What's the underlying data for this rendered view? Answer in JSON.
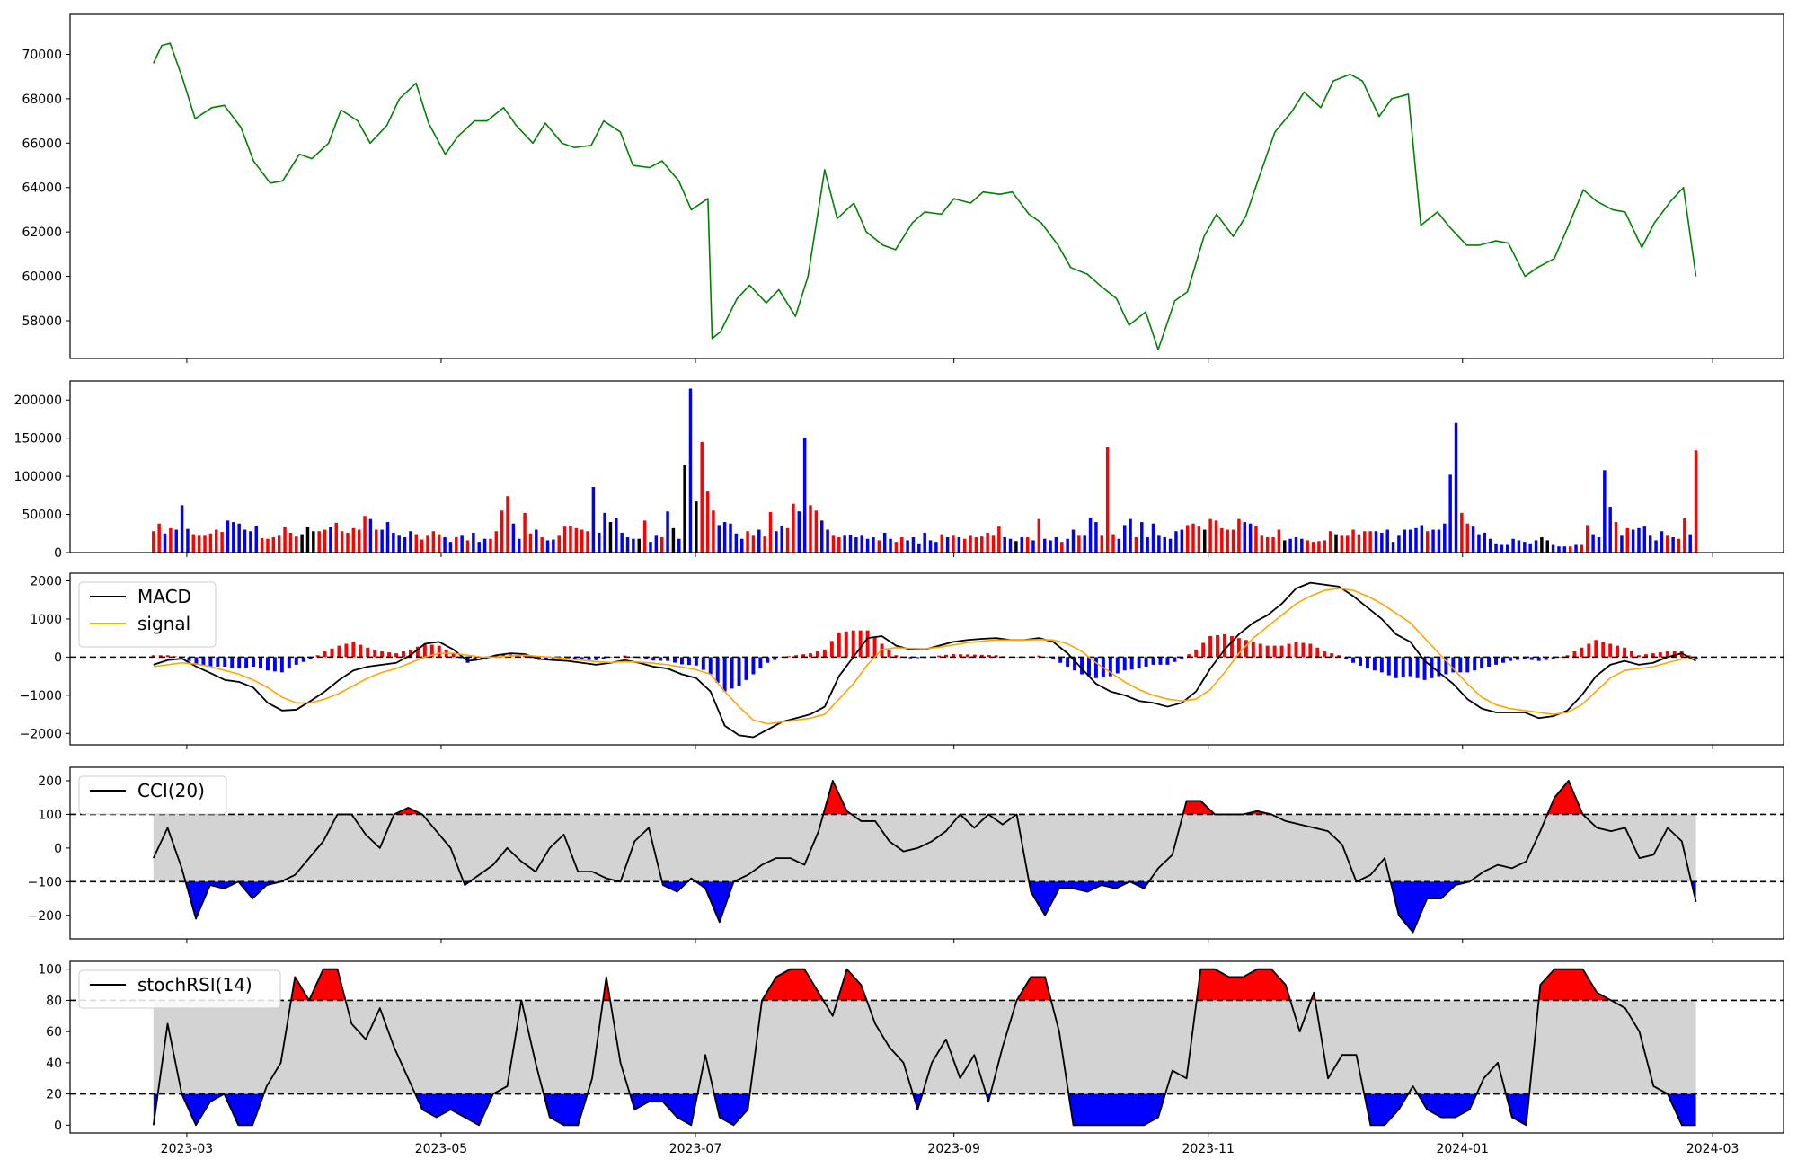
{
  "figure": {
    "background": "#ffffff"
  },
  "colors": {
    "price": "#008000",
    "up": "#ff0000",
    "down": "#0000ff",
    "flat": "#000000",
    "macd": "#000000",
    "signal": "#ffa500",
    "band": "#d3d3d3",
    "axis": "#000000"
  },
  "chart_data": [
    {
      "id": "price",
      "type": "line",
      "x_dates": [
        "2023-02-21",
        "2023-02-23",
        "2023-02-25",
        "2023-02-28",
        "2023-03-03",
        "2023-03-07",
        "2023-03-10",
        "2023-03-14",
        "2023-03-17",
        "2023-03-21",
        "2023-03-24",
        "2023-03-28",
        "2023-03-31",
        "2023-04-04",
        "2023-04-07",
        "2023-04-11",
        "2023-04-14",
        "2023-04-18",
        "2023-04-21",
        "2023-04-25",
        "2023-04-28",
        "2023-05-02",
        "2023-05-05",
        "2023-05-09",
        "2023-05-12",
        "2023-05-16",
        "2023-05-19",
        "2023-05-23",
        "2023-05-26",
        "2023-05-30",
        "2023-06-02",
        "2023-06-06",
        "2023-06-09",
        "2023-06-13",
        "2023-06-16",
        "2023-06-20",
        "2023-06-23",
        "2023-06-27",
        "2023-06-30",
        "2023-07-04",
        "2023-07-05",
        "2023-07-07",
        "2023-07-11",
        "2023-07-14",
        "2023-07-18",
        "2023-07-21",
        "2023-07-25",
        "2023-07-28",
        "2023-08-01",
        "2023-08-04",
        "2023-08-08",
        "2023-08-11",
        "2023-08-15",
        "2023-08-18",
        "2023-08-22",
        "2023-08-25",
        "2023-08-29",
        "2023-09-01",
        "2023-09-05",
        "2023-09-08",
        "2023-09-12",
        "2023-09-15",
        "2023-09-19",
        "2023-09-22",
        "2023-09-26",
        "2023-09-29",
        "2023-10-03",
        "2023-10-06",
        "2023-10-10",
        "2023-10-13",
        "2023-10-17",
        "2023-10-20",
        "2023-10-24",
        "2023-10-27",
        "2023-10-31",
        "2023-11-03",
        "2023-11-07",
        "2023-11-10",
        "2023-11-14",
        "2023-11-17",
        "2023-11-21",
        "2023-11-24",
        "2023-11-28",
        "2023-12-01",
        "2023-12-05",
        "2023-12-08",
        "2023-12-12",
        "2023-12-15",
        "2023-12-19",
        "2023-12-22",
        "2023-12-26",
        "2023-12-29",
        "2024-01-02",
        "2024-01-05",
        "2024-01-09",
        "2024-01-12",
        "2024-01-16",
        "2024-01-19",
        "2024-01-23",
        "2024-01-26",
        "2024-01-30",
        "2024-02-02",
        "2024-02-06",
        "2024-02-09",
        "2024-02-13",
        "2024-02-16",
        "2024-02-20",
        "2024-02-23",
        "2024-02-26"
      ],
      "y": [
        69600,
        70400,
        70500,
        68900,
        67100,
        67600,
        67700,
        66700,
        65200,
        64200,
        64300,
        65500,
        65300,
        66000,
        67500,
        67000,
        66000,
        66800,
        68000,
        68700,
        66900,
        65500,
        66300,
        67000,
        67000,
        67600,
        66800,
        66000,
        66900,
        66000,
        65800,
        65900,
        67000,
        66500,
        65000,
        64900,
        65200,
        64300,
        63000,
        63500,
        57200,
        57500,
        59000,
        59600,
        58800,
        59400,
        58200,
        60000,
        64800,
        62600,
        63300,
        62000,
        61400,
        61200,
        62400,
        62900,
        62800,
        63500,
        63300,
        63800,
        63700,
        63800,
        62800,
        62400,
        61400,
        60400,
        60100,
        59600,
        59000,
        57800,
        58400,
        56700,
        58900,
        59300,
        61800,
        62800,
        61800,
        62700,
        64900,
        66500,
        67400,
        68300,
        67600,
        68800,
        69100,
        68800,
        67200,
        68000,
        68200,
        62300,
        62900,
        62200,
        61400,
        61400,
        61600,
        61500,
        60000,
        60400,
        60800,
        62100,
        63900,
        63400,
        63000,
        62900,
        61300,
        62400,
        63400,
        64000,
        60000
      ],
      "yticks": [
        "58000",
        "60000",
        "62000",
        "64000",
        "66000",
        "68000",
        "70000"
      ],
      "ylim": [
        56300,
        71800
      ]
    },
    {
      "id": "volume",
      "type": "bar",
      "yticks": [
        "0",
        "50000",
        "100000",
        "150000",
        "200000"
      ],
      "ylim": [
        0,
        225000
      ],
      "values": [
        28000,
        38000,
        25000,
        32000,
        30000,
        62000,
        31000,
        24000,
        22000,
        22000,
        25000,
        30000,
        27000,
        42000,
        40000,
        38000,
        30000,
        28000,
        35000,
        19000,
        18000,
        20000,
        22000,
        33000,
        26000,
        21000,
        24000,
        33000,
        28000,
        28000,
        30000,
        33000,
        39000,
        28000,
        26000,
        32000,
        30000,
        48000,
        44000,
        30000,
        30000,
        40000,
        26000,
        22000,
        20000,
        28000,
        24000,
        17000,
        22000,
        28000,
        24000,
        20000,
        14000,
        20000,
        22000,
        16000,
        26000,
        14000,
        18000,
        18000,
        28000,
        55000,
        74000,
        38000,
        18000,
        52000,
        25000,
        30000,
        20000,
        16000,
        17000,
        22000,
        34000,
        35000,
        32000,
        30000,
        28000,
        86000,
        26000,
        52000,
        40000,
        45000,
        26000,
        20000,
        18000,
        18000,
        42000,
        14000,
        22000,
        20000,
        54000,
        32000,
        18000,
        115000,
        215000,
        67000,
        145000,
        80000,
        55000,
        36000,
        40000,
        38000,
        25000,
        18000,
        28000,
        22000,
        30000,
        21000,
        53000,
        28000,
        35000,
        32000,
        64000,
        54000,
        150000,
        62000,
        55000,
        42000,
        30000,
        22000,
        20000,
        22000,
        23000,
        20000,
        22000,
        18000,
        20000,
        16000,
        26000,
        18000,
        14000,
        20000,
        16000,
        20000,
        12000,
        26000,
        16000,
        14000,
        24000,
        20000,
        22000,
        20000,
        18000,
        22000,
        20000,
        21000,
        26000,
        22000,
        34000,
        20000,
        18000,
        15000,
        20000,
        20000,
        16000,
        44000,
        18000,
        16000,
        20000,
        14000,
        18000,
        30000,
        22000,
        22000,
        46000,
        40000,
        22000,
        138000,
        24000,
        18000,
        36000,
        44000,
        20000,
        40000,
        20000,
        38000,
        22000,
        20000,
        18000,
        28000,
        30000,
        36000,
        38000,
        34000,
        30000,
        44000,
        42000,
        32000,
        30000,
        30000,
        44000,
        40000,
        38000,
        35000,
        22000,
        20000,
        20000,
        30000,
        16000,
        18000,
        20000,
        18000,
        16000,
        14000,
        15000,
        16000,
        28000,
        24000,
        22000,
        22000,
        30000,
        24000,
        28000,
        28000,
        28000,
        26000,
        30000,
        14000,
        22000,
        30000,
        30000,
        32000,
        36000,
        28000,
        30000,
        30000,
        38000,
        102000,
        170000,
        52000,
        38000,
        34000,
        24000,
        26000,
        18000,
        12000,
        10000,
        10000,
        18000,
        16000,
        14000,
        12000,
        16000,
        20000,
        16000,
        10000,
        8000,
        8000,
        8000,
        10000,
        10000,
        36000,
        24000,
        20000,
        108000,
        60000,
        40000,
        22000,
        32000,
        30000,
        32000,
        34000,
        22000,
        16000,
        28000,
        22000,
        20000,
        18000,
        45000,
        24000,
        134000
      ],
      "colors_code": "rrbrbbbrrrrrrbbbbbbrrrrrrrkkkrrbrrrrrrbrbbbbbbrrrrrbbrbrbbbrrrrbbrrbrbbrrrrrrbbbkbbbbkrbbrbkbkbkrrrbbbbbrrbrrbbrrbbrrbbrrbbbbbbrbbrrbbbbbbrbrbrrrrrrrbbkbrbrbbbrbbrbbbrrrbbbrbbbbbbbbrrrkrrrrrrbbrrrrrkbbbrrrrrkrrrrrrbbbbbbbbbrbbbbbrrbbbbbbbbbbbbkkbbbrbrrbbbbrbrbbbbbbrb"
    },
    {
      "id": "macd",
      "type": "line",
      "yticks": [
        "−2000",
        "−1000",
        "0",
        "1000",
        "2000"
      ],
      "ylim": [
        -2300,
        2200
      ],
      "series": [
        {
          "name": "MACD",
          "color": "#000000",
          "values": [
            -200,
            -80,
            -40,
            -250,
            -420,
            -600,
            -650,
            -800,
            -1200,
            -1400,
            -1380,
            -1150,
            -900,
            -600,
            -350,
            -250,
            -200,
            -150,
            50,
            350,
            400,
            200,
            -100,
            -50,
            50,
            100,
            80,
            -50,
            -80,
            -100,
            -150,
            -200,
            -150,
            -80,
            -150,
            -250,
            -300,
            -450,
            -550,
            -900,
            -1800,
            -2050,
            -2100,
            -1900,
            -1700,
            -1600,
            -1500,
            -1300,
            -500,
            0,
            500,
            550,
            300,
            200,
            200,
            300,
            400,
            450,
            480,
            500,
            450,
            450,
            500,
            400,
            100,
            -300,
            -700,
            -900,
            -1000,
            -1150,
            -1200,
            -1300,
            -1200,
            -900,
            -300,
            200,
            600,
            900,
            1100,
            1400,
            1800,
            1950,
            1900,
            1850,
            1600,
            1300,
            1000,
            600,
            400,
            -100,
            -400,
            -700,
            -1100,
            -1350,
            -1450,
            -1450,
            -1450,
            -1600,
            -1550,
            -1400,
            -1000,
            -500,
            -200,
            -100,
            -200,
            -150,
            0,
            100,
            -100
          ]
        },
        {
          "name": "signal",
          "color": "#ffa500",
          "values": [
            -250,
            -200,
            -150,
            -180,
            -250,
            -350,
            -450,
            -600,
            -800,
            -1050,
            -1200,
            -1200,
            -1100,
            -950,
            -750,
            -550,
            -400,
            -300,
            -150,
            0,
            100,
            100,
            50,
            0,
            0,
            30,
            50,
            20,
            -10,
            -40,
            -80,
            -120,
            -140,
            -120,
            -130,
            -160,
            -200,
            -260,
            -330,
            -450,
            -900,
            -1300,
            -1650,
            -1750,
            -1700,
            -1650,
            -1600,
            -1500,
            -1100,
            -700,
            -200,
            200,
            250,
            230,
            220,
            260,
            320,
            380,
            420,
            450,
            450,
            450,
            460,
            450,
            350,
            150,
            -150,
            -400,
            -650,
            -850,
            -1000,
            -1100,
            -1150,
            -1100,
            -850,
            -400,
            100,
            500,
            800,
            1100,
            1400,
            1600,
            1750,
            1800,
            1750,
            1600,
            1400,
            1150,
            900,
            500,
            100,
            -300,
            -700,
            -1050,
            -1250,
            -1350,
            -1400,
            -1450,
            -1500,
            -1450,
            -1250,
            -900,
            -550,
            -350,
            -300,
            -250,
            -150,
            -50,
            -50
          ]
        }
      ],
      "histogram": [
        50,
        50,
        0,
        -200,
        -250,
        -250,
        -300,
        -250,
        -350,
        -400,
        -200,
        -50,
        150,
        300,
        400,
        250,
        150,
        100,
        200,
        350,
        300,
        100,
        -150,
        -50,
        50,
        70,
        30,
        -70,
        -70,
        -60,
        -70,
        -80,
        -10,
        40,
        -20,
        -90,
        -100,
        -190,
        -220,
        -450,
        -900,
        -750,
        -450,
        -150,
        0,
        50,
        100,
        200,
        650,
        700,
        700,
        350,
        50,
        -30,
        -20,
        40,
        80,
        70,
        60,
        50,
        0,
        0,
        40,
        -50,
        -250,
        -450,
        -550,
        -500,
        -350,
        -300,
        -200,
        -200,
        -50,
        200,
        550,
        600,
        500,
        400,
        300,
        300,
        400,
        350,
        150,
        50,
        -150,
        -300,
        -400,
        -550,
        -500,
        -600,
        -500,
        -400,
        -400,
        -300,
        -200,
        -100,
        -50,
        -100,
        -50,
        50,
        250,
        450,
        350,
        250,
        50,
        100,
        150,
        150,
        -50
      ],
      "legend_position": "upper-left"
    },
    {
      "id": "cci",
      "type": "line",
      "yticks": [
        "−200",
        "−100",
        "0",
        "100",
        "200"
      ],
      "ylim": [
        -270,
        240
      ],
      "thresholds": [
        100,
        -100
      ],
      "series": [
        {
          "name": "CCI(20)",
          "color": "#000000",
          "values": [
            -30,
            60,
            -60,
            -210,
            -110,
            -120,
            -100,
            -150,
            -110,
            -100,
            -80,
            -30,
            20,
            100,
            100,
            40,
            0,
            100,
            120,
            100,
            50,
            0,
            -110,
            -80,
            -50,
            0,
            -40,
            -70,
            0,
            40,
            -70,
            -70,
            -90,
            -100,
            20,
            60,
            -110,
            -130,
            -90,
            -120,
            -220,
            -100,
            -80,
            -50,
            -30,
            -30,
            -50,
            50,
            200,
            110,
            80,
            80,
            20,
            -10,
            0,
            20,
            50,
            100,
            60,
            100,
            70,
            100,
            -130,
            -200,
            -120,
            -120,
            -130,
            -110,
            -120,
            -100,
            -120,
            -60,
            -20,
            140,
            140,
            100,
            100,
            100,
            110,
            100,
            80,
            70,
            60,
            50,
            10,
            -100,
            -80,
            -30,
            -200,
            -250,
            -150,
            -150,
            -110,
            -100,
            -70,
            -50,
            -60,
            -40,
            50,
            150,
            200,
            100,
            60,
            50,
            60,
            -30,
            -20,
            60,
            20,
            -160
          ]
        }
      ],
      "legend_position": "upper-left"
    },
    {
      "id": "stochrsi",
      "type": "line",
      "yticks": [
        "0",
        "20",
        "40",
        "60",
        "80",
        "100"
      ],
      "ylim": [
        -5,
        105
      ],
      "thresholds": [
        80,
        20
      ],
      "series": [
        {
          "name": "stochRSI(14)",
          "color": "#000000",
          "values": [
            0,
            65,
            20,
            0,
            15,
            20,
            0,
            0,
            25,
            40,
            95,
            80,
            100,
            100,
            65,
            55,
            75,
            50,
            30,
            10,
            5,
            10,
            5,
            0,
            20,
            25,
            80,
            40,
            5,
            0,
            0,
            30,
            95,
            40,
            10,
            15,
            15,
            5,
            0,
            45,
            5,
            0,
            10,
            80,
            95,
            100,
            100,
            85,
            70,
            100,
            90,
            65,
            50,
            40,
            10,
            40,
            55,
            30,
            45,
            15,
            50,
            80,
            95,
            95,
            60,
            0,
            0,
            0,
            0,
            0,
            0,
            5,
            35,
            30,
            100,
            100,
            95,
            95,
            100,
            100,
            90,
            60,
            85,
            30,
            45,
            45,
            0,
            0,
            10,
            25,
            10,
            5,
            5,
            10,
            30,
            40,
            5,
            0,
            90,
            100,
            100,
            100,
            85,
            80,
            75,
            60,
            25,
            20,
            0,
            0
          ]
        }
      ],
      "legend_position": "upper-left"
    }
  ],
  "x_axis": {
    "type": "date",
    "ticks": [
      "2023-03",
      "2023-05",
      "2023-07",
      "2023-09",
      "2023-11",
      "2024-01",
      "2024-03"
    ],
    "tick_dates": [
      "2023-03-01",
      "2023-05-01",
      "2023-07-01",
      "2023-09-01",
      "2023-11-01",
      "2024-01-01",
      "2024-03-01"
    ],
    "xlim": [
      "2023-02-01",
      "2024-03-18"
    ],
    "shared": true
  }
}
